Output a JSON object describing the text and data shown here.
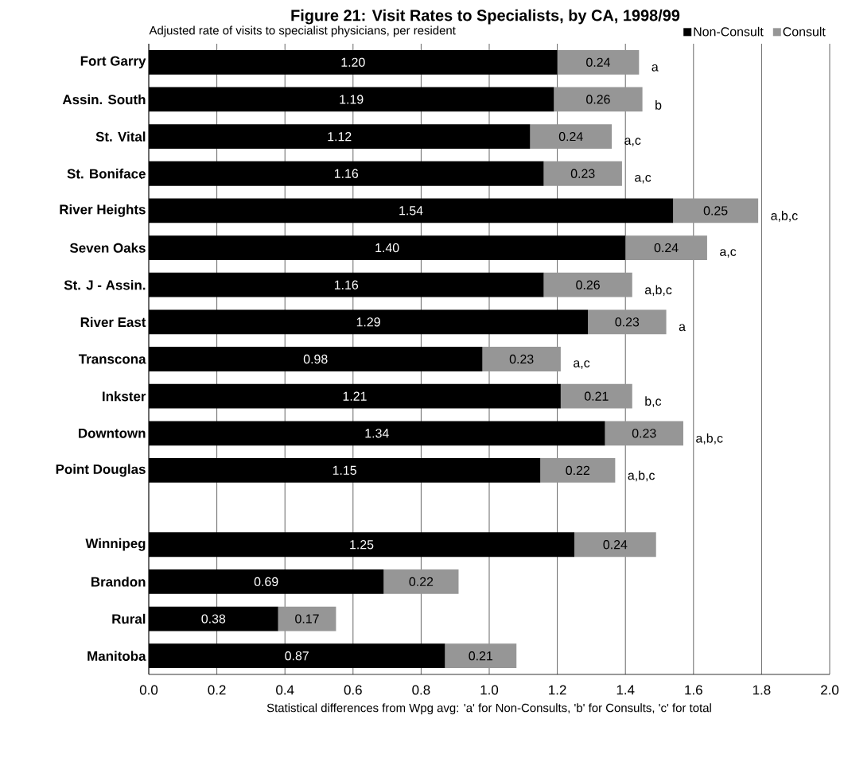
{
  "chart_data": {
    "type": "bar",
    "orientation": "horizontal",
    "stacked": true,
    "title": "Figure 21: Visit Rates to Specialists, by CA, 1998/99",
    "subtitle": "Adjusted rate of visits to specialist physicians, per resident",
    "xlabel": "Statistical differences from Wpg avg: 'a' for Non-Consults, 'b' for Consults, 'c' for total",
    "categories": [
      "Fort Garry",
      "Assin. South",
      "St. Vital",
      "St. Boniface",
      "River Heights",
      "Seven Oaks",
      "St. J - Assin.",
      "River East",
      "Transcona",
      "Inkster",
      "Downtown",
      "Point Douglas",
      null,
      "Winnipeg",
      "Brandon",
      "Rural",
      "Manitoba"
    ],
    "series": [
      {
        "name": "Non-Consult",
        "color": "#000000",
        "values": [
          1.2,
          1.19,
          1.12,
          1.16,
          1.54,
          1.4,
          1.16,
          1.29,
          0.98,
          1.21,
          1.34,
          1.15,
          null,
          1.25,
          0.69,
          0.38,
          0.87
        ],
        "value_labels": [
          "1.20",
          "1.19",
          "1.12",
          "1.16",
          "1.54",
          "1.40",
          "1.16",
          "1.29",
          "0.98",
          "1.21",
          "1.34",
          "1.15",
          null,
          "1.25",
          "0.69",
          "0.38",
          "0.87"
        ]
      },
      {
        "name": "Consult",
        "color": "#969696",
        "values": [
          0.24,
          0.26,
          0.24,
          0.23,
          0.25,
          0.24,
          0.26,
          0.23,
          0.23,
          0.21,
          0.23,
          0.22,
          null,
          0.24,
          0.22,
          0.17,
          0.21
        ],
        "value_labels": [
          "0.24",
          "0.26",
          "0.24",
          "0.23",
          "0.25",
          "0.24",
          "0.26",
          "0.23",
          "0.23",
          "0.21",
          "0.23",
          "0.22",
          null,
          "0.24",
          "0.22",
          "0.17",
          "0.21"
        ]
      }
    ],
    "xlim": [
      0,
      2
    ],
    "xticks": [
      {
        "value": 0,
        "label": "0.0"
      },
      {
        "value": 0.2,
        "label": "0.2"
      },
      {
        "value": 0.4,
        "label": "0.4"
      },
      {
        "value": 0.6,
        "label": "0.6"
      },
      {
        "value": 0.8,
        "label": "0.8"
      },
      {
        "value": 1.0,
        "label": "1.0"
      },
      {
        "value": 1.2,
        "label": "1.2"
      },
      {
        "value": 1.4,
        "label": "1.4"
      },
      {
        "value": 1.6,
        "label": "1.6"
      },
      {
        "value": 1.8,
        "label": "1.8"
      },
      {
        "value": 2.0,
        "label": "2.0"
      }
    ],
    "grid": "x",
    "legend": "top right",
    "annotations": [
      "a",
      "b",
      "a,c",
      "a,c",
      "a,b,c",
      "a,c",
      "a,b,c",
      "a",
      "a,c",
      "b,c",
      "a,b,c",
      "a,b,c"
    ]
  }
}
